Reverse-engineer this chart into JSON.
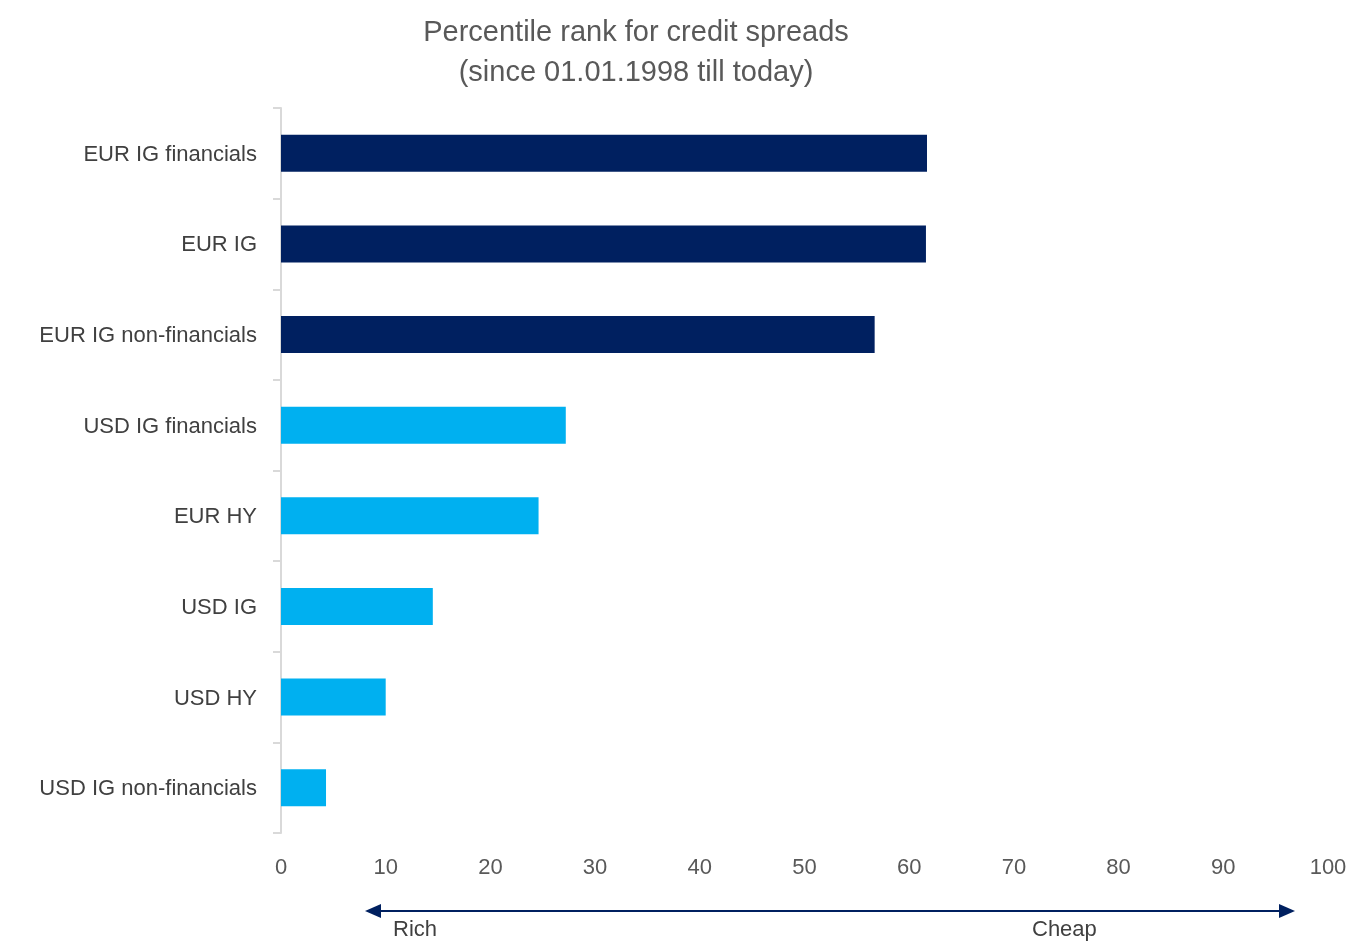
{
  "chart_data": {
    "type": "bar",
    "orientation": "horizontal",
    "title": "Percentile rank for credit spreads\n(since 01.01.1998 till today)",
    "categories": [
      "EUR IG financials",
      "EUR IG",
      "EUR IG non-financials",
      "USD IG financials",
      "EUR HY",
      "USD IG",
      "USD HY",
      "USD IG non-financials"
    ],
    "values": [
      61.7,
      61.6,
      56.7,
      27.2,
      24.6,
      14.5,
      10.0,
      4.3
    ],
    "colors": [
      "#002060",
      "#002060",
      "#002060",
      "#00b0f0",
      "#00b0f0",
      "#00b0f0",
      "#00b0f0",
      "#00b0f0"
    ],
    "xlim": [
      0,
      100
    ],
    "xticks": [
      0,
      10,
      20,
      30,
      40,
      50,
      60,
      70,
      80,
      90,
      100
    ],
    "annotations": [
      "Rich",
      "Cheap"
    ]
  }
}
